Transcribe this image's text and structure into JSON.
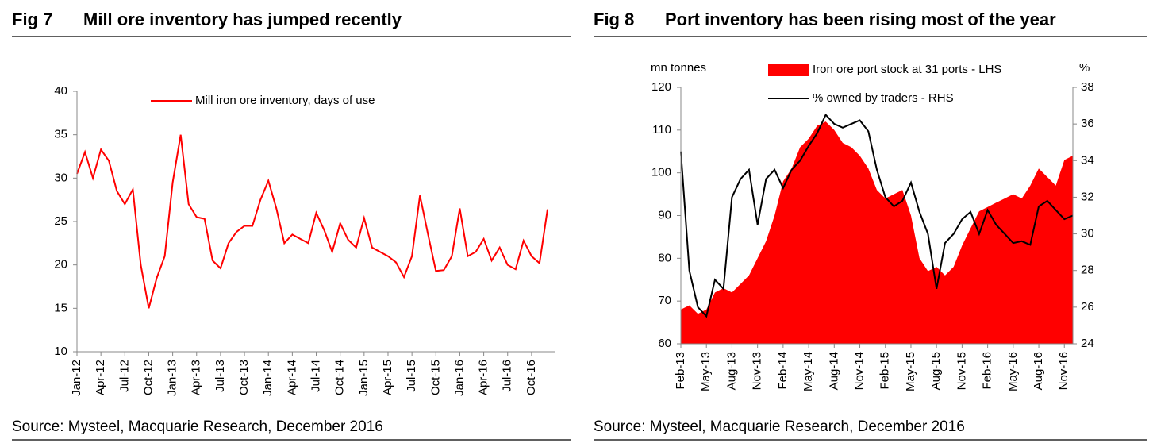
{
  "chart_data": [
    {
      "type": "line",
      "figure": "Fig 7",
      "title": "Mill ore inventory has jumped recently",
      "source": "Source: Mysteel, Macquarie Research, December 2016",
      "categories": [
        "Jan-12",
        null,
        null,
        "Apr-12",
        null,
        null,
        "Jul-12",
        null,
        null,
        "Oct-12",
        null,
        null,
        "Jan-13",
        null,
        null,
        "Apr-13",
        null,
        null,
        "Jul-13",
        null,
        null,
        "Oct-13",
        null,
        null,
        "Jan-14",
        null,
        null,
        "Apr-14",
        null,
        null,
        "Jul-14",
        null,
        null,
        "Oct-14",
        null,
        null,
        "Jan-15",
        null,
        null,
        "Apr-15",
        null,
        null,
        "Jul-15",
        null,
        null,
        "Oct-15",
        null,
        null,
        "Jan-16",
        null,
        null,
        "Apr-16",
        null,
        null,
        "Jul-16",
        null,
        null,
        "Oct-16",
        null,
        null
      ],
      "series": [
        {
          "name": "Mill iron ore inventory, days of use",
          "color": "#ff0000",
          "values": [
            30.5,
            33,
            30,
            33.3,
            32,
            28.5,
            27,
            28.7,
            20,
            15,
            18.5,
            21,
            29.5,
            35,
            27,
            25.5,
            25.3,
            20.5,
            19.6,
            22.5,
            23.8,
            24.5,
            24.5,
            27.5,
            29.7,
            26.5,
            22.5,
            23.5,
            23,
            22.5,
            26,
            24,
            21.5,
            24.8,
            22.9,
            22,
            25.4,
            22,
            21.5,
            21,
            20.3,
            18.6,
            21,
            28,
            23.6,
            19.3,
            19.4,
            21,
            26.5,
            21,
            21.5,
            23,
            20.5,
            22,
            20,
            19.5,
            22.8,
            21,
            20.2,
            26.4
          ]
        }
      ],
      "ylim": [
        10,
        40
      ],
      "yticks": [
        10,
        15,
        20,
        25,
        30,
        35,
        40
      ],
      "grid": false
    },
    {
      "type": "combo",
      "figure": "Fig 8",
      "title": "Port inventory has been rising most of the year",
      "source": "Source: Mysteel, Macquarie Research, December 2016",
      "ylabel": "mn tonnes",
      "y2label": "%",
      "categories": [
        "Feb-13",
        null,
        null,
        "May-13",
        null,
        null,
        "Aug-13",
        null,
        null,
        "Nov-13",
        null,
        null,
        "Feb-14",
        null,
        null,
        "May-14",
        null,
        null,
        "Aug-14",
        null,
        null,
        "Nov-14",
        null,
        null,
        "Feb-15",
        null,
        null,
        "May-15",
        null,
        null,
        "Aug-15",
        null,
        null,
        "Nov-15",
        null,
        null,
        "Feb-16",
        null,
        null,
        "May-16",
        null,
        null,
        "Aug-16",
        null,
        null,
        "Nov-16",
        null
      ],
      "series": [
        {
          "name": "Iron ore port stock at 31 ports - LHS",
          "kind": "area",
          "color": "#ff0000",
          "values": [
            68,
            69,
            67,
            68,
            72,
            73,
            72,
            74,
            76,
            80,
            84,
            90,
            98,
            101,
            106,
            108,
            111,
            112,
            110,
            107,
            106,
            104,
            101,
            96,
            94,
            95,
            96,
            90,
            80,
            77,
            78,
            76,
            78,
            83,
            87,
            91,
            92,
            93,
            94,
            95,
            94,
            97,
            101,
            99,
            97,
            103,
            104
          ]
        },
        {
          "name": "% owned by traders - RHS",
          "kind": "line",
          "axis": "y2",
          "color": "#000000",
          "values": [
            34.5,
            28,
            26,
            25.5,
            27.5,
            27,
            32,
            33,
            33.5,
            30.5,
            33,
            33.5,
            32.5,
            33.5,
            34,
            34.8,
            35.5,
            36.5,
            36,
            35.8,
            36,
            36.2,
            35.6,
            33.5,
            32,
            31.5,
            31.8,
            32.8,
            31.2,
            30,
            27,
            29.5,
            30,
            30.8,
            31.2,
            30,
            31.3,
            30.5,
            30,
            29.5,
            29.6,
            29.4,
            31.5,
            31.8,
            31.3,
            30.8,
            31
          ]
        }
      ],
      "ylim": [
        60,
        120
      ],
      "yticks": [
        60,
        70,
        80,
        90,
        100,
        110,
        120
      ],
      "y2lim": [
        24,
        38
      ],
      "y2ticks": [
        24,
        26,
        28,
        30,
        32,
        34,
        36,
        38
      ],
      "grid": false
    }
  ]
}
